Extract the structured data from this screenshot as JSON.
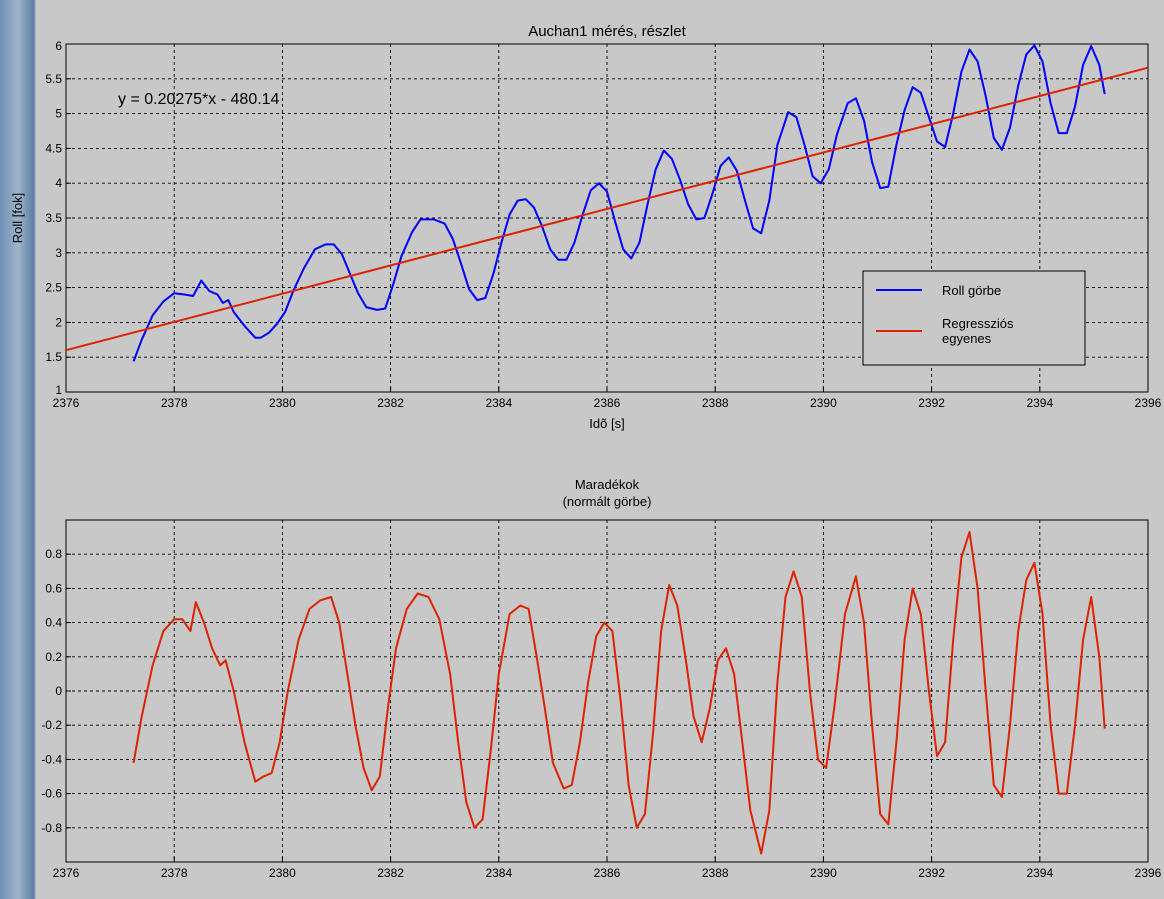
{
  "chart_data": [
    {
      "type": "line",
      "title": "Auchan1 mérés, részlet",
      "xlabel": "Idõ [s]",
      "ylabel": "Roll [fok]",
      "xlim": [
        2376,
        2396
      ],
      "ylim": [
        1,
        6
      ],
      "xticks": [
        "2376",
        "2378",
        "2380",
        "2382",
        "2384",
        "2386",
        "2388",
        "2390",
        "2392",
        "2394",
        "2396"
      ],
      "yticks": [
        "1",
        "1.5",
        "2",
        "2.5",
        "3",
        "3.5",
        "4",
        "4.5",
        "5",
        "5.5",
        "6"
      ],
      "grid": true,
      "legend": "lower-right",
      "annotation": "y = 0.20275*x - 480.14",
      "series": [
        {
          "name": "Roll görbe",
          "color": "#0000ff",
          "points": [
            [
              2377.25,
              1.44
            ],
            [
              2377.4,
              1.75
            ],
            [
              2377.6,
              2.1
            ],
            [
              2377.8,
              2.3
            ],
            [
              2378.0,
              2.42
            ],
            [
              2378.2,
              2.4
            ],
            [
              2378.35,
              2.38
            ],
            [
              2378.5,
              2.6
            ],
            [
              2378.65,
              2.45
            ],
            [
              2378.8,
              2.4
            ],
            [
              2378.9,
              2.28
            ],
            [
              2379.0,
              2.32
            ],
            [
              2379.1,
              2.15
            ],
            [
              2379.3,
              1.95
            ],
            [
              2379.5,
              1.78
            ],
            [
              2379.6,
              1.78
            ],
            [
              2379.75,
              1.85
            ],
            [
              2379.9,
              1.98
            ],
            [
              2380.05,
              2.15
            ],
            [
              2380.2,
              2.45
            ],
            [
              2380.4,
              2.78
            ],
            [
              2380.6,
              3.05
            ],
            [
              2380.8,
              3.12
            ],
            [
              2380.95,
              3.12
            ],
            [
              2381.1,
              2.98
            ],
            [
              2381.25,
              2.7
            ],
            [
              2381.4,
              2.42
            ],
            [
              2381.55,
              2.22
            ],
            [
              2381.75,
              2.18
            ],
            [
              2381.9,
              2.2
            ],
            [
              2382.05,
              2.55
            ],
            [
              2382.2,
              2.95
            ],
            [
              2382.4,
              3.3
            ],
            [
              2382.55,
              3.48
            ],
            [
              2382.8,
              3.48
            ],
            [
              2383.0,
              3.42
            ],
            [
              2383.15,
              3.2
            ],
            [
              2383.3,
              2.85
            ],
            [
              2383.45,
              2.48
            ],
            [
              2383.6,
              2.32
            ],
            [
              2383.75,
              2.35
            ],
            [
              2383.9,
              2.7
            ],
            [
              2384.05,
              3.15
            ],
            [
              2384.2,
              3.55
            ],
            [
              2384.35,
              3.75
            ],
            [
              2384.5,
              3.77
            ],
            [
              2384.65,
              3.65
            ],
            [
              2384.8,
              3.38
            ],
            [
              2384.95,
              3.05
            ],
            [
              2385.1,
              2.9
            ],
            [
              2385.25,
              2.9
            ],
            [
              2385.4,
              3.15
            ],
            [
              2385.55,
              3.55
            ],
            [
              2385.7,
              3.9
            ],
            [
              2385.85,
              4.0
            ],
            [
              2386.0,
              3.88
            ],
            [
              2386.15,
              3.45
            ],
            [
              2386.3,
              3.05
            ],
            [
              2386.45,
              2.92
            ],
            [
              2386.6,
              3.15
            ],
            [
              2386.75,
              3.7
            ],
            [
              2386.9,
              4.2
            ],
            [
              2387.05,
              4.47
            ],
            [
              2387.2,
              4.35
            ],
            [
              2387.35,
              4.05
            ],
            [
              2387.5,
              3.7
            ],
            [
              2387.65,
              3.48
            ],
            [
              2387.8,
              3.5
            ],
            [
              2387.95,
              3.85
            ],
            [
              2388.1,
              4.25
            ],
            [
              2388.25,
              4.37
            ],
            [
              2388.4,
              4.18
            ],
            [
              2388.55,
              3.75
            ],
            [
              2388.7,
              3.35
            ],
            [
              2388.85,
              3.28
            ],
            [
              2389.0,
              3.75
            ],
            [
              2389.15,
              4.55
            ],
            [
              2389.35,
              5.02
            ],
            [
              2389.5,
              4.95
            ],
            [
              2389.65,
              4.55
            ],
            [
              2389.8,
              4.1
            ],
            [
              2389.95,
              4.0
            ],
            [
              2390.1,
              4.2
            ],
            [
              2390.25,
              4.7
            ],
            [
              2390.45,
              5.15
            ],
            [
              2390.6,
              5.22
            ],
            [
              2390.75,
              4.9
            ],
            [
              2390.9,
              4.3
            ],
            [
              2391.05,
              3.93
            ],
            [
              2391.2,
              3.95
            ],
            [
              2391.35,
              4.55
            ],
            [
              2391.5,
              5.05
            ],
            [
              2391.65,
              5.38
            ],
            [
              2391.8,
              5.3
            ],
            [
              2391.95,
              4.95
            ],
            [
              2392.1,
              4.6
            ],
            [
              2392.25,
              4.52
            ],
            [
              2392.4,
              5.0
            ],
            [
              2392.55,
              5.6
            ],
            [
              2392.7,
              5.92
            ],
            [
              2392.85,
              5.75
            ],
            [
              2393.0,
              5.25
            ],
            [
              2393.15,
              4.65
            ],
            [
              2393.3,
              4.48
            ],
            [
              2393.45,
              4.8
            ],
            [
              2393.6,
              5.4
            ],
            [
              2393.75,
              5.85
            ],
            [
              2393.9,
              5.98
            ],
            [
              2394.05,
              5.75
            ],
            [
              2394.2,
              5.15
            ],
            [
              2394.35,
              4.72
            ],
            [
              2394.5,
              4.72
            ],
            [
              2394.65,
              5.1
            ],
            [
              2394.8,
              5.7
            ],
            [
              2394.95,
              5.97
            ],
            [
              2395.1,
              5.7
            ],
            [
              2395.2,
              5.28
            ]
          ]
        },
        {
          "name": "Regressziós egyenes",
          "color": "#dd2200",
          "points": [
            [
              2376,
              1.6
            ],
            [
              2396,
              5.66
            ]
          ]
        }
      ]
    },
    {
      "type": "line",
      "title": "Maradékok",
      "subtitle": "(normált görbe)",
      "xlabel": "",
      "ylabel": "",
      "xlim": [
        2376,
        2396
      ],
      "ylim": [
        -1,
        1
      ],
      "xticks": [
        "2376",
        "2378",
        "2380",
        "2382",
        "2384",
        "2386",
        "2388",
        "2390",
        "2392",
        "2394",
        "2396"
      ],
      "yticks": [
        "-0.8",
        "-0.6",
        "-0.4",
        "-0.2",
        "0",
        "0.2",
        "0.4",
        "0.6",
        "0.8"
      ],
      "grid": true,
      "series": [
        {
          "color": "#dd2200",
          "points": [
            [
              2377.25,
              -0.42
            ],
            [
              2377.4,
              -0.15
            ],
            [
              2377.6,
              0.15
            ],
            [
              2377.8,
              0.35
            ],
            [
              2378.0,
              0.42
            ],
            [
              2378.15,
              0.42
            ],
            [
              2378.3,
              0.35
            ],
            [
              2378.4,
              0.52
            ],
            [
              2378.55,
              0.4
            ],
            [
              2378.7,
              0.25
            ],
            [
              2378.85,
              0.15
            ],
            [
              2378.95,
              0.18
            ],
            [
              2379.1,
              0.0
            ],
            [
              2379.3,
              -0.3
            ],
            [
              2379.5,
              -0.53
            ],
            [
              2379.65,
              -0.5
            ],
            [
              2379.8,
              -0.48
            ],
            [
              2379.95,
              -0.3
            ],
            [
              2380.1,
              0.0
            ],
            [
              2380.3,
              0.3
            ],
            [
              2380.5,
              0.48
            ],
            [
              2380.7,
              0.53
            ],
            [
              2380.9,
              0.55
            ],
            [
              2381.05,
              0.4
            ],
            [
              2381.2,
              0.1
            ],
            [
              2381.35,
              -0.2
            ],
            [
              2381.5,
              -0.45
            ],
            [
              2381.65,
              -0.58
            ],
            [
              2381.8,
              -0.5
            ],
            [
              2381.95,
              -0.1
            ],
            [
              2382.1,
              0.25
            ],
            [
              2382.3,
              0.48
            ],
            [
              2382.5,
              0.57
            ],
            [
              2382.7,
              0.55
            ],
            [
              2382.9,
              0.42
            ],
            [
              2383.1,
              0.1
            ],
            [
              2383.25,
              -0.3
            ],
            [
              2383.4,
              -0.65
            ],
            [
              2383.55,
              -0.8
            ],
            [
              2383.7,
              -0.75
            ],
            [
              2383.85,
              -0.35
            ],
            [
              2384.0,
              0.1
            ],
            [
              2384.2,
              0.45
            ],
            [
              2384.4,
              0.5
            ],
            [
              2384.55,
              0.48
            ],
            [
              2384.7,
              0.2
            ],
            [
              2384.85,
              -0.1
            ],
            [
              2385.0,
              -0.42
            ],
            [
              2385.2,
              -0.57
            ],
            [
              2385.35,
              -0.55
            ],
            [
              2385.5,
              -0.3
            ],
            [
              2385.65,
              0.05
            ],
            [
              2385.8,
              0.32
            ],
            [
              2385.95,
              0.4
            ],
            [
              2386.1,
              0.35
            ],
            [
              2386.25,
              -0.05
            ],
            [
              2386.4,
              -0.55
            ],
            [
              2386.55,
              -0.8
            ],
            [
              2386.7,
              -0.72
            ],
            [
              2386.85,
              -0.25
            ],
            [
              2387.0,
              0.35
            ],
            [
              2387.15,
              0.62
            ],
            [
              2387.3,
              0.5
            ],
            [
              2387.45,
              0.2
            ],
            [
              2387.6,
              -0.15
            ],
            [
              2387.75,
              -0.3
            ],
            [
              2387.9,
              -0.1
            ],
            [
              2388.05,
              0.18
            ],
            [
              2388.2,
              0.25
            ],
            [
              2388.35,
              0.1
            ],
            [
              2388.5,
              -0.3
            ],
            [
              2388.65,
              -0.7
            ],
            [
              2388.85,
              -0.95
            ],
            [
              2389.0,
              -0.7
            ],
            [
              2389.15,
              0.05
            ],
            [
              2389.3,
              0.55
            ],
            [
              2389.45,
              0.7
            ],
            [
              2389.6,
              0.55
            ],
            [
              2389.75,
              0.0
            ],
            [
              2389.9,
              -0.4
            ],
            [
              2390.05,
              -0.45
            ],
            [
              2390.2,
              -0.1
            ],
            [
              2390.4,
              0.45
            ],
            [
              2390.6,
              0.67
            ],
            [
              2390.75,
              0.4
            ],
            [
              2390.9,
              -0.2
            ],
            [
              2391.05,
              -0.72
            ],
            [
              2391.2,
              -0.78
            ],
            [
              2391.35,
              -0.3
            ],
            [
              2391.5,
              0.3
            ],
            [
              2391.65,
              0.6
            ],
            [
              2391.8,
              0.45
            ],
            [
              2391.95,
              0.0
            ],
            [
              2392.1,
              -0.38
            ],
            [
              2392.25,
              -0.3
            ],
            [
              2392.4,
              0.3
            ],
            [
              2392.55,
              0.78
            ],
            [
              2392.7,
              0.93
            ],
            [
              2392.85,
              0.6
            ],
            [
              2393.0,
              0.0
            ],
            [
              2393.15,
              -0.55
            ],
            [
              2393.3,
              -0.62
            ],
            [
              2393.45,
              -0.2
            ],
            [
              2393.6,
              0.35
            ],
            [
              2393.75,
              0.65
            ],
            [
              2393.9,
              0.75
            ],
            [
              2394.05,
              0.45
            ],
            [
              2394.2,
              -0.2
            ],
            [
              2394.35,
              -0.6
            ],
            [
              2394.5,
              -0.6
            ],
            [
              2394.65,
              -0.2
            ],
            [
              2394.8,
              0.3
            ],
            [
              2394.95,
              0.55
            ],
            [
              2395.1,
              0.2
            ],
            [
              2395.2,
              -0.22
            ]
          ]
        }
      ]
    }
  ]
}
